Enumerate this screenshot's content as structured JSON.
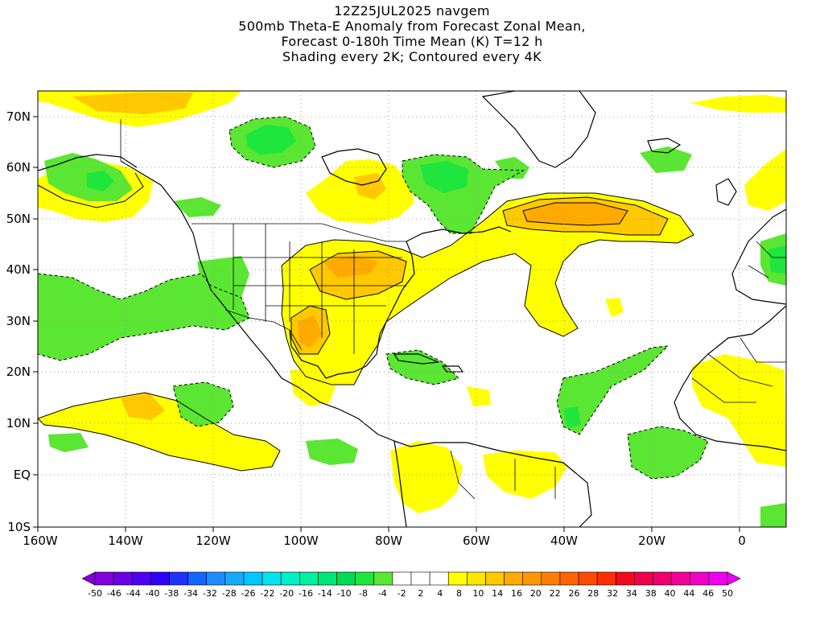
{
  "title": {
    "line1": "12Z25JUL2025 navgem",
    "line2": "500mb Theta-E Anomaly from Forecast Zonal Mean,",
    "line3": "Forecast 0-180h Time Mean (K) T=12 h",
    "line4": "Shading every 2K; Contoured every 4K"
  },
  "axes": {
    "lat_labels": [
      "70N",
      "60N",
      "50N",
      "40N",
      "30N",
      "20N",
      "10N",
      "EQ",
      "10S"
    ],
    "lon_labels": [
      "160W",
      "140W",
      "120W",
      "100W",
      "80W",
      "60W",
      "40W",
      "20W",
      "0"
    ]
  },
  "colorbar": {
    "labels": [
      "-50",
      "-46",
      "-44",
      "-40",
      "-38",
      "-34",
      "-32",
      "-28",
      "-26",
      "-22",
      "-20",
      "-16",
      "-14",
      "-10",
      "-8",
      "-4",
      "-2",
      "2",
      "4",
      "8",
      "10",
      "14",
      "16",
      "20",
      "22",
      "26",
      "28",
      "32",
      "34",
      "38",
      "40",
      "44",
      "46",
      "50"
    ],
    "colors": [
      "#8200dc",
      "#6a00e6",
      "#5000f0",
      "#3000ff",
      "#1e32ff",
      "#1464ff",
      "#1e8cff",
      "#14aaff",
      "#00c8ff",
      "#00e6f0",
      "#00f0c8",
      "#00f0a0",
      "#00e678",
      "#00dc50",
      "#1ee63c",
      "#5ae632",
      "#ffffff",
      "#ffffff",
      "#ffffff",
      "#ffff00",
      "#ffe600",
      "#ffc800",
      "#ffaa00",
      "#ff9600",
      "#ff7d00",
      "#ff6400",
      "#ff4b00",
      "#ff2d00",
      "#f00a1e",
      "#f0004b",
      "#f0006e",
      "#f00096",
      "#f000c8",
      "#f000f0"
    ]
  },
  "map_colors": {
    "neg_light": "#5ae632",
    "neg_mid": "#1ee63c",
    "neg_strong": "#00e678",
    "pos_light": "#ffff00",
    "pos_mid": "#ffe600",
    "pos_strong": "#ffc800",
    "pos_stronger": "#ffaa00",
    "pos_strongest": "#ff9600"
  }
}
